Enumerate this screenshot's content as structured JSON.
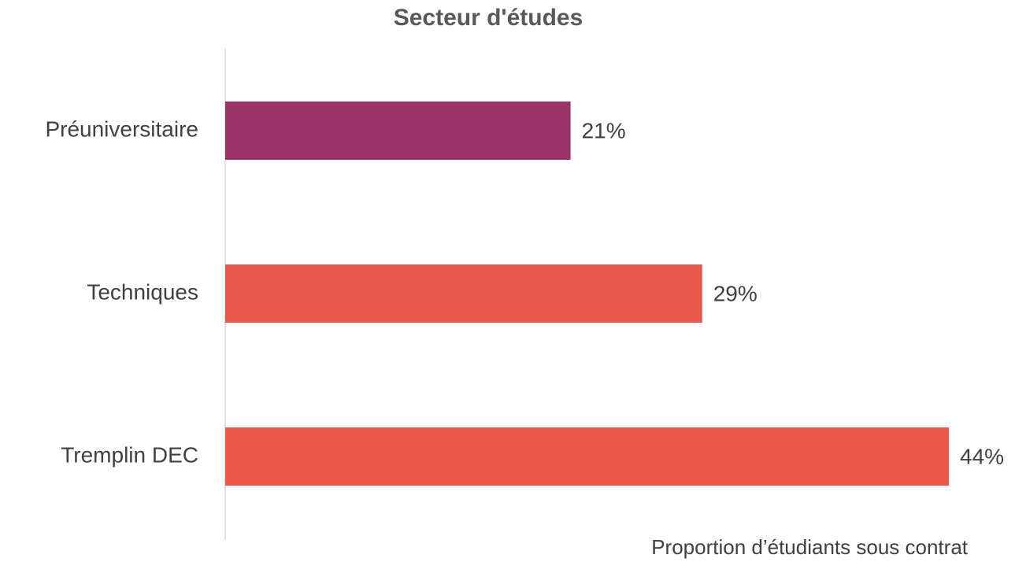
{
  "chart_data": {
    "type": "bar",
    "orientation": "horizontal",
    "title": "Secteur d'études",
    "xlabel": "Proportion d’étudiants sous contrat",
    "ylabel": "",
    "categories": [
      "Préuniversitaire",
      "Techniques",
      "Tremplin DEC"
    ],
    "values": [
      21,
      29,
      44
    ],
    "value_labels": [
      "21%",
      "29%",
      "44%"
    ],
    "unit": "%",
    "xlim": [
      0,
      44
    ],
    "colors": [
      "#993366",
      "#E55A4B",
      "#EE5A4A"
    ],
    "axis_color": "#D9D9D9",
    "grid": false,
    "legend": "none"
  }
}
